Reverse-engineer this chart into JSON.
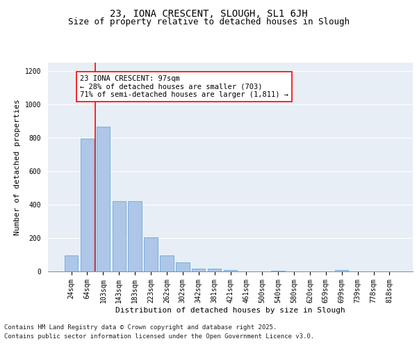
{
  "title1": "23, IONA CRESCENT, SLOUGH, SL1 6JH",
  "title2": "Size of property relative to detached houses in Slough",
  "xlabel": "Distribution of detached houses by size in Slough",
  "ylabel": "Number of detached properties",
  "bar_labels": [
    "24sqm",
    "64sqm",
    "103sqm",
    "143sqm",
    "183sqm",
    "223sqm",
    "262sqm",
    "302sqm",
    "342sqm",
    "381sqm",
    "421sqm",
    "461sqm",
    "500sqm",
    "540sqm",
    "580sqm",
    "620sqm",
    "659sqm",
    "699sqm",
    "739sqm",
    "778sqm",
    "818sqm"
  ],
  "bar_values": [
    95,
    795,
    865,
    420,
    420,
    205,
    95,
    55,
    18,
    18,
    8,
    0,
    0,
    5,
    0,
    0,
    0,
    10,
    0,
    0,
    0
  ],
  "bar_color": "#aec6e8",
  "bar_edge_color": "#5a9fd4",
  "vline_color": "red",
  "annotation_text": "23 IONA CRESCENT: 97sqm\n← 28% of detached houses are smaller (703)\n71% of semi-detached houses are larger (1,811) →",
  "ylim": [
    0,
    1250
  ],
  "yticks": [
    0,
    200,
    400,
    600,
    800,
    1000,
    1200
  ],
  "bg_color": "#e8eef5",
  "footer1": "Contains HM Land Registry data © Crown copyright and database right 2025.",
  "footer2": "Contains public sector information licensed under the Open Government Licence v3.0.",
  "title1_fontsize": 10,
  "title2_fontsize": 9,
  "annotation_fontsize": 7.5,
  "axis_label_fontsize": 8,
  "tick_fontsize": 7,
  "footer_fontsize": 6.5
}
